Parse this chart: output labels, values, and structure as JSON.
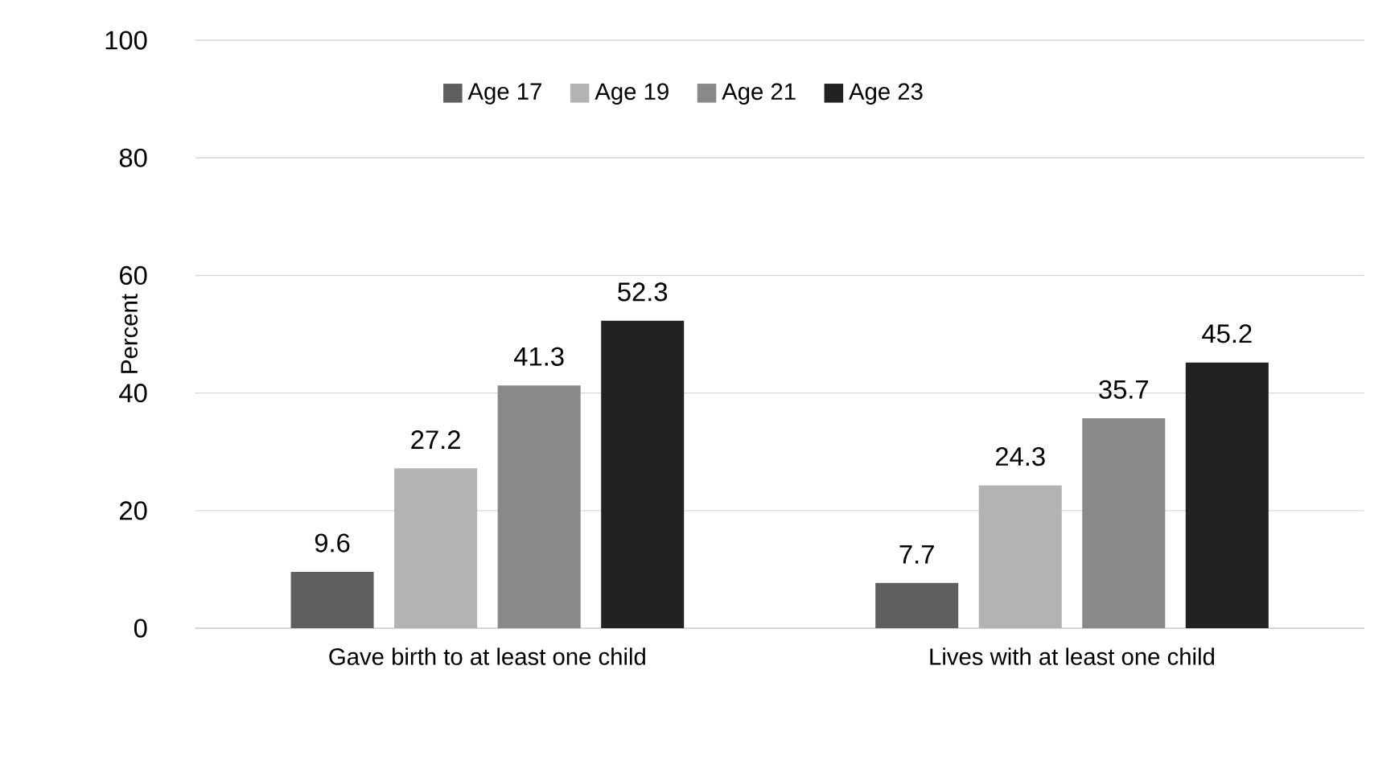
{
  "chart_data": {
    "type": "bar",
    "ylabel": "Percent",
    "categories": [
      "Gave birth to at least one child",
      "Lives with at least one child"
    ],
    "series": [
      {
        "name": "Age 17",
        "color": "#5f5f5f",
        "values": [
          9.6,
          7.7
        ]
      },
      {
        "name": "Age 19",
        "color": "#b3b3b3",
        "values": [
          27.2,
          24.3
        ]
      },
      {
        "name": "Age 21",
        "color": "#898989",
        "values": [
          41.3,
          35.7
        ]
      },
      {
        "name": "Age 23",
        "color": "#222222",
        "values": [
          52.3,
          45.2
        ]
      }
    ],
    "ylim": [
      0,
      100
    ],
    "yticks": [
      0,
      20,
      40,
      60,
      80,
      100
    ],
    "grid": "y",
    "legend": "top",
    "data_labels": true
  }
}
